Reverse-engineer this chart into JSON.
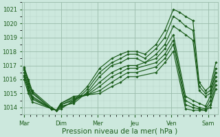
{
  "xlabel": "Pression niveau de la mer( hPa )",
  "bg_color": "#cce8dd",
  "grid_color_major": "#99bbaa",
  "grid_color_minor": "#b5d4c8",
  "line_color": "#1a5c1a",
  "marker": "D",
  "markersize": 1.8,
  "linewidth": 0.85,
  "ylim": [
    1013.5,
    1021.5
  ],
  "xlim": [
    -0.05,
    5.25
  ],
  "day_labels": [
    "Mar",
    "Dim",
    "Mer",
    "Jeu",
    "Ven",
    "Sam"
  ],
  "day_positions": [
    0,
    1,
    2,
    3,
    4,
    5
  ],
  "tick_fontsize": 6.0,
  "xlabel_fontsize": 7.5,
  "series": [
    {
      "x": [
        0.0,
        0.12,
        0.22,
        0.75,
        0.88,
        1.0,
        1.35,
        1.72,
        2.05,
        2.38,
        2.62,
        2.82,
        3.05,
        3.28,
        3.58,
        3.82,
        4.05,
        4.22,
        4.38,
        4.58,
        4.75,
        4.92,
        5.05,
        5.2
      ],
      "y": [
        1016.9,
        1016.0,
        1015.2,
        1014.0,
        1013.8,
        1013.9,
        1014.5,
        1015.5,
        1016.8,
        1017.5,
        1017.8,
        1018.0,
        1018.0,
        1017.8,
        1018.5,
        1019.5,
        1021.0,
        1020.8,
        1020.5,
        1020.2,
        1015.8,
        1015.2,
        1015.5,
        1017.2
      ]
    },
    {
      "x": [
        0.0,
        0.12,
        0.22,
        0.75,
        0.88,
        1.0,
        1.35,
        1.72,
        2.05,
        2.38,
        2.62,
        2.82,
        3.05,
        3.28,
        3.58,
        3.82,
        4.05,
        4.22,
        4.38,
        4.58,
        4.75,
        4.92,
        5.05,
        5.2
      ],
      "y": [
        1016.8,
        1015.9,
        1015.1,
        1013.9,
        1013.8,
        1014.0,
        1014.4,
        1015.3,
        1016.5,
        1017.2,
        1017.5,
        1017.8,
        1017.8,
        1017.5,
        1018.2,
        1019.0,
        1020.5,
        1020.2,
        1019.8,
        1019.5,
        1015.5,
        1015.0,
        1015.2,
        1016.8
      ]
    },
    {
      "x": [
        0.0,
        0.12,
        0.22,
        0.75,
        0.88,
        1.0,
        1.35,
        1.72,
        2.05,
        2.38,
        2.62,
        2.82,
        3.05,
        3.28,
        3.58,
        3.82,
        4.05,
        4.22,
        4.38,
        4.58,
        4.75,
        4.92,
        5.05,
        5.2
      ],
      "y": [
        1016.7,
        1015.7,
        1015.0,
        1013.9,
        1013.8,
        1014.1,
        1014.3,
        1015.1,
        1016.2,
        1017.0,
        1017.2,
        1017.5,
        1017.5,
        1017.2,
        1017.8,
        1018.5,
        1019.8,
        1019.5,
        1019.2,
        1018.8,
        1015.2,
        1014.8,
        1015.0,
        1016.5
      ]
    },
    {
      "x": [
        0.0,
        0.12,
        0.22,
        0.75,
        0.88,
        1.0,
        1.35,
        1.72,
        2.05,
        2.38,
        2.62,
        2.82,
        3.05,
        3.58,
        3.82,
        4.05,
        4.38,
        4.58,
        4.75,
        4.92,
        5.05,
        5.2
      ],
      "y": [
        1016.5,
        1015.5,
        1014.8,
        1013.9,
        1013.8,
        1014.2,
        1014.5,
        1015.0,
        1015.8,
        1016.5,
        1016.8,
        1017.0,
        1017.0,
        1017.5,
        1018.2,
        1019.2,
        1014.8,
        1014.5,
        1014.3,
        1014.1,
        1014.8,
        1016.2
      ]
    },
    {
      "x": [
        0.0,
        0.12,
        0.22,
        0.75,
        0.88,
        1.0,
        1.35,
        1.72,
        2.05,
        2.38,
        2.62,
        2.82,
        3.05,
        3.58,
        3.82,
        4.05,
        4.38,
        4.58,
        4.75,
        4.92,
        5.05,
        5.2
      ],
      "y": [
        1016.3,
        1015.4,
        1014.7,
        1013.9,
        1013.8,
        1014.2,
        1014.6,
        1014.9,
        1015.5,
        1016.2,
        1016.5,
        1016.8,
        1016.8,
        1017.2,
        1017.8,
        1018.8,
        1014.5,
        1014.2,
        1014.0,
        1013.9,
        1014.5,
        1015.9
      ]
    },
    {
      "x": [
        0.0,
        0.12,
        0.22,
        0.75,
        0.88,
        1.0,
        1.35,
        1.72,
        2.05,
        2.38,
        2.62,
        2.82,
        3.05,
        3.58,
        3.82,
        4.05,
        4.38,
        4.58,
        4.75,
        4.92,
        5.05,
        5.2
      ],
      "y": [
        1016.2,
        1015.2,
        1014.6,
        1013.9,
        1013.8,
        1014.3,
        1014.7,
        1014.9,
        1015.2,
        1015.8,
        1016.2,
        1016.5,
        1016.5,
        1016.9,
        1017.5,
        1018.5,
        1014.2,
        1014.0,
        1013.9,
        1013.8,
        1014.2,
        1015.6
      ]
    },
    {
      "x": [
        0.0,
        0.12,
        0.22,
        0.75,
        0.88,
        1.0,
        1.35,
        1.72,
        2.05,
        2.38,
        2.62,
        2.82,
        3.05,
        3.58,
        3.82,
        4.05,
        4.38,
        4.58,
        4.75,
        4.92,
        5.05,
        5.2
      ],
      "y": [
        1016.0,
        1015.0,
        1014.4,
        1013.9,
        1013.8,
        1014.3,
        1014.8,
        1014.9,
        1015.0,
        1015.5,
        1015.8,
        1016.2,
        1016.2,
        1016.5,
        1017.2,
        1018.0,
        1013.9,
        1013.8,
        1013.8,
        1013.8,
        1014.0,
        1015.3
      ]
    }
  ]
}
